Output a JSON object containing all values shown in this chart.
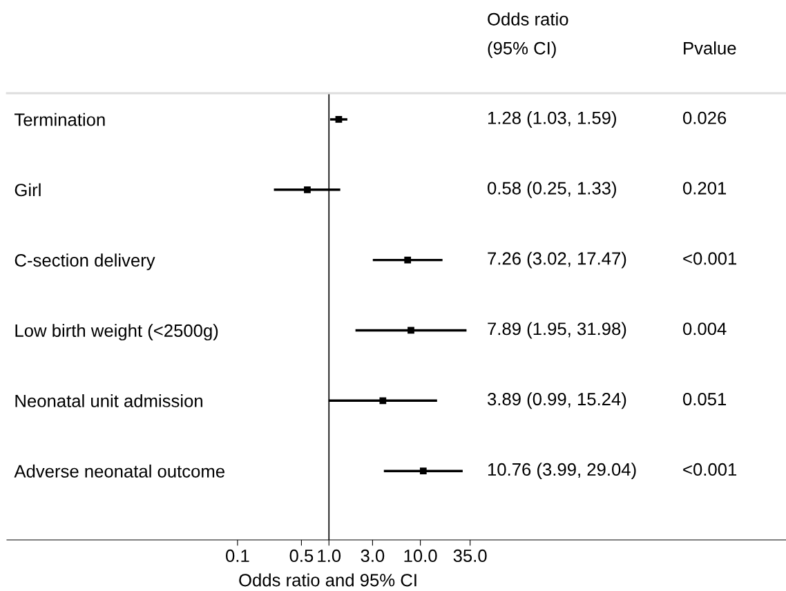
{
  "chart_data": {
    "type": "scatter",
    "orientation": "horizontal",
    "log": "x",
    "marker": "square",
    "grid": false,
    "tick_labels": "xy",
    "xlabel": "Odds ratio and 95% CI",
    "categories": [
      "Termination",
      "Girl",
      "C-section delivery",
      "Low birth weight (<2500g)",
      "Neonatal unit admission",
      "Adverse neonatal outcome"
    ],
    "series": [
      {
        "color": "#000000",
        "values": [
          1.28,
          0.58,
          7.26,
          7.89,
          3.89,
          10.76
        ],
        "errors": [
          [
            1.03,
            1.59
          ],
          [
            0.25,
            1.33
          ],
          [
            3.02,
            17.47
          ],
          [
            1.95,
            31.98
          ],
          [
            0.99,
            15.24
          ],
          [
            3.99,
            29.04
          ]
        ]
      }
    ],
    "xlim": [
      0.0003,
      100000
    ],
    "xticks": [
      0.1,
      0.5,
      {
        "value": 1,
        "label": "1.0"
      },
      {
        "value": 3,
        "label": "3.0"
      },
      {
        "value": 10,
        "label": "10.0"
      },
      {
        "value": 35,
        "label": "35.0"
      }
    ],
    "ref_lines": [
      {
        "axis": "x",
        "value": 1,
        "color": "#000000"
      }
    ],
    "annotations": [
      "Odds ratio\n(95% CI)",
      "Pvalue",
      "1.28 (1.03, 1.59)",
      "0.026",
      "0.58 (0.25, 1.33)",
      "0.201",
      "7.26 (3.02, 17.47)",
      "<0.001",
      "7.89 (1.95, 31.98)",
      "0.004",
      "3.89 (0.99, 15.24)",
      "0.051",
      "10.76 (3.99, 29.04)",
      "<0.001"
    ]
  }
}
